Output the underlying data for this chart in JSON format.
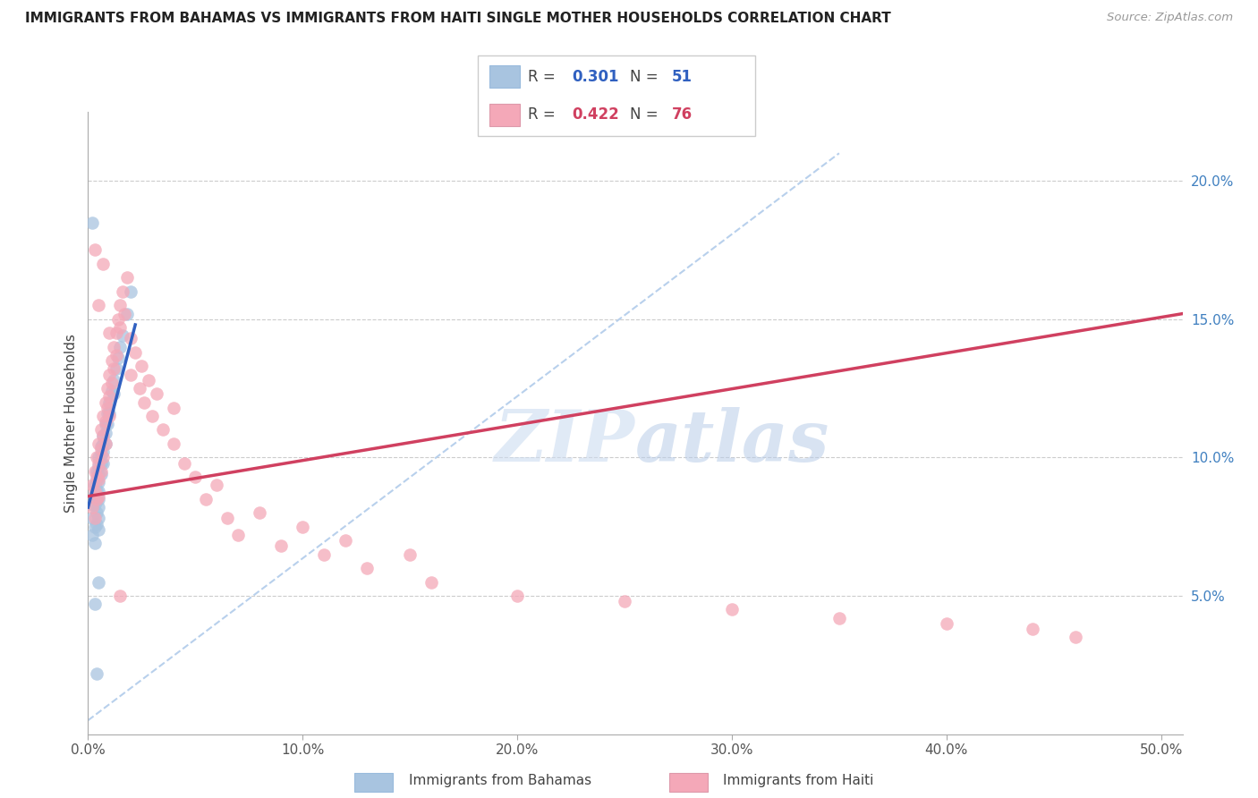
{
  "title": "IMMIGRANTS FROM BAHAMAS VS IMMIGRANTS FROM HAITI SINGLE MOTHER HOUSEHOLDS CORRELATION CHART",
  "source": "Source: ZipAtlas.com",
  "ylabel": "Single Mother Households",
  "xlabel_ticks": [
    "0.0%",
    "10.0%",
    "20.0%",
    "30.0%",
    "40.0%",
    "50.0%"
  ],
  "xlabel_vals": [
    0.0,
    0.1,
    0.2,
    0.3,
    0.4,
    0.5
  ],
  "ytick_labels": [
    "5.0%",
    "10.0%",
    "15.0%",
    "20.0%"
  ],
  "ytick_vals": [
    0.05,
    0.1,
    0.15,
    0.2
  ],
  "xlim": [
    0.0,
    0.51
  ],
  "ylim": [
    0.0,
    0.225
  ],
  "bahamas_R": 0.301,
  "bahamas_N": 51,
  "haiti_R": 0.422,
  "haiti_N": 76,
  "bahamas_color": "#a8c4e0",
  "haiti_color": "#f4a8b8",
  "bahamas_line_color": "#3060c0",
  "haiti_line_color": "#d04060",
  "diagonal_color": "#b8d0ec",
  "watermark": "ZIPatlas",
  "bahamas_x": [
    0.002,
    0.002,
    0.002,
    0.003,
    0.003,
    0.003,
    0.003,
    0.003,
    0.004,
    0.004,
    0.004,
    0.004,
    0.004,
    0.004,
    0.005,
    0.005,
    0.005,
    0.005,
    0.005,
    0.005,
    0.005,
    0.005,
    0.005,
    0.006,
    0.006,
    0.006,
    0.006,
    0.007,
    0.007,
    0.007,
    0.007,
    0.008,
    0.008,
    0.008,
    0.009,
    0.009,
    0.01,
    0.01,
    0.011,
    0.012,
    0.012,
    0.013,
    0.014,
    0.015,
    0.016,
    0.018,
    0.02,
    0.002,
    0.003,
    0.005,
    0.004
  ],
  "bahamas_y": [
    0.083,
    0.078,
    0.072,
    0.09,
    0.087,
    0.083,
    0.075,
    0.069,
    0.095,
    0.092,
    0.088,
    0.085,
    0.08,
    0.076,
    0.1,
    0.097,
    0.094,
    0.091,
    0.088,
    0.085,
    0.082,
    0.078,
    0.074,
    0.104,
    0.101,
    0.098,
    0.094,
    0.108,
    0.105,
    0.102,
    0.098,
    0.112,
    0.109,
    0.105,
    0.116,
    0.112,
    0.12,
    0.116,
    0.124,
    0.128,
    0.123,
    0.132,
    0.136,
    0.14,
    0.144,
    0.152,
    0.16,
    0.185,
    0.047,
    0.055,
    0.022
  ],
  "haiti_x": [
    0.002,
    0.002,
    0.003,
    0.003,
    0.003,
    0.004,
    0.004,
    0.004,
    0.005,
    0.005,
    0.005,
    0.005,
    0.006,
    0.006,
    0.006,
    0.007,
    0.007,
    0.007,
    0.008,
    0.008,
    0.008,
    0.009,
    0.009,
    0.01,
    0.01,
    0.01,
    0.011,
    0.011,
    0.012,
    0.012,
    0.013,
    0.013,
    0.014,
    0.015,
    0.015,
    0.016,
    0.017,
    0.018,
    0.02,
    0.02,
    0.022,
    0.024,
    0.025,
    0.026,
    0.028,
    0.03,
    0.032,
    0.035,
    0.04,
    0.04,
    0.045,
    0.05,
    0.055,
    0.06,
    0.065,
    0.07,
    0.08,
    0.09,
    0.1,
    0.11,
    0.12,
    0.13,
    0.15,
    0.16,
    0.2,
    0.25,
    0.3,
    0.35,
    0.4,
    0.44,
    0.46,
    0.003,
    0.005,
    0.007,
    0.01,
    0.015
  ],
  "haiti_y": [
    0.09,
    0.082,
    0.095,
    0.088,
    0.078,
    0.1,
    0.093,
    0.085,
    0.105,
    0.098,
    0.092,
    0.086,
    0.11,
    0.103,
    0.095,
    0.115,
    0.108,
    0.1,
    0.12,
    0.113,
    0.105,
    0.125,
    0.118,
    0.13,
    0.122,
    0.115,
    0.135,
    0.127,
    0.14,
    0.132,
    0.145,
    0.137,
    0.15,
    0.155,
    0.147,
    0.16,
    0.152,
    0.165,
    0.143,
    0.13,
    0.138,
    0.125,
    0.133,
    0.12,
    0.128,
    0.115,
    0.123,
    0.11,
    0.118,
    0.105,
    0.098,
    0.093,
    0.085,
    0.09,
    0.078,
    0.072,
    0.08,
    0.068,
    0.075,
    0.065,
    0.07,
    0.06,
    0.065,
    0.055,
    0.05,
    0.048,
    0.045,
    0.042,
    0.04,
    0.038,
    0.035,
    0.175,
    0.155,
    0.17,
    0.145,
    0.05
  ],
  "bahamas_line_x": [
    0.0,
    0.022
  ],
  "bahamas_line_y": [
    0.082,
    0.148
  ],
  "haiti_line_x": [
    0.0,
    0.51
  ],
  "haiti_line_y": [
    0.086,
    0.152
  ]
}
